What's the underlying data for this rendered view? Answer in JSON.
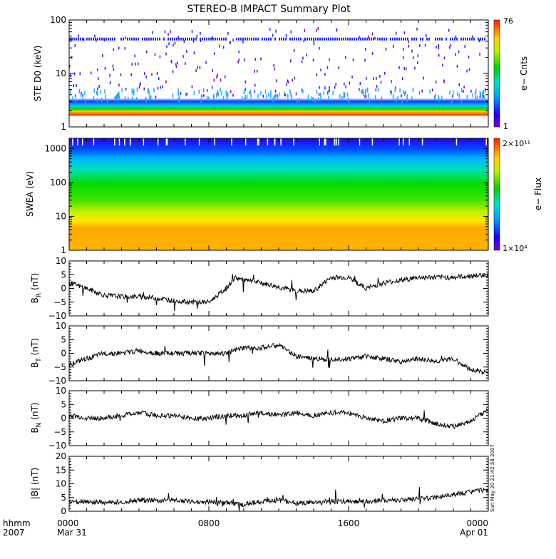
{
  "title": "STEREO-B IMPACT Summary Plot",
  "footer": {
    "time_label": "hhmm",
    "year_label": "2007",
    "date_start": "Mar 31",
    "date_end": "Apr 01",
    "timestamp": "Sun May 20 21:42:58 2007"
  },
  "chart_data": [
    {
      "type": "heatmap",
      "ylabel": "STE D0 (keV)",
      "yscale": "log",
      "ylim": [
        1,
        100
      ],
      "y_ticks": [
        "1",
        "10",
        "100"
      ],
      "colorbar": {
        "label": "e− Cnts",
        "max_label": "76",
        "min_label": "1"
      }
    },
    {
      "type": "heatmap",
      "ylabel": "SWEA (eV)",
      "yscale": "log",
      "ylim": [
        1,
        2000
      ],
      "y_ticks": [
        "1",
        "10",
        "100",
        "1000"
      ],
      "colorbar": {
        "label": "e− Flux",
        "max_label": "2×10¹¹",
        "min_label": "1×10⁴"
      }
    },
    {
      "type": "line",
      "ylabel_main": "B",
      "ylabel_sub": "R",
      "ylabel_unit": " (nT)",
      "ylim": [
        -10,
        10
      ],
      "y_ticks": [
        "10",
        "5",
        "0",
        "−5",
        "−10"
      ],
      "x": [
        0,
        1,
        2,
        3,
        4,
        5,
        6,
        7,
        8,
        9,
        9.5,
        10,
        11,
        12,
        13,
        14,
        15,
        16,
        17,
        18,
        19,
        20,
        21,
        22,
        23,
        24
      ],
      "series": [
        {
          "values": [
            2,
            0,
            -2.5,
            -3,
            -3,
            -3.5,
            -4.5,
            -5,
            -5,
            0,
            4,
            3,
            2,
            0.5,
            -1,
            -1,
            4,
            4,
            0,
            2,
            3,
            4,
            4,
            4,
            4.5,
            5
          ]
        }
      ]
    },
    {
      "type": "line",
      "ylabel_main": "B",
      "ylabel_sub": "T",
      "ylabel_unit": " (nT)",
      "ylim": [
        -10,
        10
      ],
      "y_ticks": [
        "10",
        "5",
        "0",
        "−5",
        "−10"
      ],
      "x": [
        0,
        1,
        2,
        3,
        4,
        5,
        6,
        7,
        8,
        9,
        10,
        11,
        12,
        13,
        14,
        15,
        16,
        17,
        18,
        19,
        20,
        21,
        22,
        23,
        24
      ],
      "series": [
        {
          "values": [
            -4,
            -2,
            0,
            0,
            1,
            0,
            0,
            0,
            0,
            0,
            2,
            2,
            3,
            -1,
            -2,
            -2,
            -2,
            -1,
            -2,
            -3,
            -2,
            -3,
            -2,
            -6,
            -7
          ]
        }
      ]
    },
    {
      "type": "line",
      "ylabel_main": "B",
      "ylabel_sub": "N",
      "ylabel_unit": " (nT)",
      "ylim": [
        -10,
        10
      ],
      "y_ticks": [
        "10",
        "5",
        "0",
        "−5",
        "−10"
      ],
      "x": [
        0,
        1,
        2,
        3,
        4,
        5,
        6,
        7,
        8,
        9,
        10,
        11,
        12,
        13,
        14,
        15,
        16,
        17,
        18,
        19,
        20,
        21,
        22,
        23,
        24
      ],
      "series": [
        {
          "values": [
            1,
            0,
            0,
            1,
            2,
            1,
            1,
            0,
            0,
            1,
            1,
            2,
            1,
            2,
            1,
            2,
            2,
            0,
            -1,
            0,
            0,
            -2,
            -3,
            -1,
            3
          ]
        }
      ]
    },
    {
      "type": "line",
      "ylabel": "|B| (nT)",
      "ylim": [
        0,
        20
      ],
      "y_ticks": [
        "20",
        "15",
        "10",
        "5",
        "0"
      ],
      "x": [
        0,
        1,
        2,
        3,
        4,
        5,
        6,
        7,
        8,
        9,
        10,
        11,
        12,
        13,
        14,
        15,
        16,
        17,
        18,
        19,
        20,
        21,
        22,
        23,
        24
      ],
      "series": [
        {
          "values": [
            3.5,
            3.5,
            3,
            3.5,
            4,
            4,
            4,
            3.5,
            3.5,
            3,
            2.5,
            3.5,
            4,
            3,
            3,
            3.5,
            3.5,
            3.5,
            4,
            4,
            4.5,
            5,
            6,
            7,
            8
          ]
        }
      ]
    },
    {
      "type": "time_axis",
      "x_ticks": [
        "0000",
        "0800",
        "1600",
        "0000"
      ]
    }
  ]
}
